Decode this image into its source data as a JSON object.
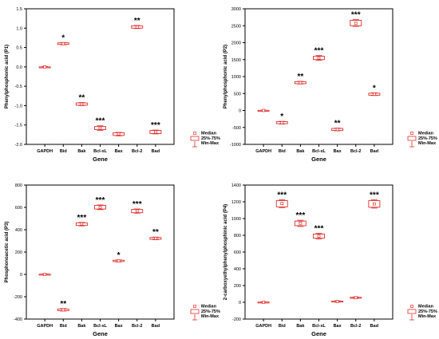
{
  "colors": {
    "box": "#e0302c",
    "axis": "#000000"
  },
  "chart_data": [
    {
      "type": "box",
      "ylabel": "Phenylphosphonic acid (P1)",
      "xlabel": "Gene",
      "categories": [
        "GAPDH",
        "Bid",
        "Bak",
        "Bcl-xL",
        "Bax",
        "Bcl-2",
        "Bad"
      ],
      "ylim": [
        -2.0,
        1.5
      ],
      "yticks": [
        1.5,
        1.0,
        0.5,
        0.0,
        -0.5,
        -1.0,
        -1.5,
        -2.0
      ],
      "ytick_labels": [
        "1.5",
        "1.0",
        "0.5",
        "0.0",
        "-0.5",
        "-1.0",
        "-1.5",
        "-2.0"
      ],
      "boxes": [
        {
          "median": 0.0,
          "q1": 0.0,
          "q3": 0.0,
          "min": -0.01,
          "max": 0.01,
          "sig": ""
        },
        {
          "median": 0.6,
          "q1": 0.58,
          "q3": 0.62,
          "min": 0.57,
          "max": 0.63,
          "sig": "*"
        },
        {
          "median": -0.96,
          "q1": -0.99,
          "q3": -0.93,
          "min": -1.0,
          "max": -0.92,
          "sig": "**"
        },
        {
          "median": -1.58,
          "q1": -1.62,
          "q3": -1.54,
          "min": -1.64,
          "max": -1.52,
          "sig": "***"
        },
        {
          "median": -1.73,
          "q1": -1.77,
          "q3": -1.7,
          "min": -1.78,
          "max": -1.69,
          "sig": ""
        },
        {
          "median": 1.03,
          "q1": 1.0,
          "q3": 1.06,
          "min": 0.99,
          "max": 1.07,
          "sig": "**"
        },
        {
          "median": -1.68,
          "q1": -1.72,
          "q3": -1.64,
          "min": -1.73,
          "max": -1.63,
          "sig": "***"
        }
      ],
      "legend": [
        "Median",
        "25%-75%",
        "Min-Max"
      ]
    },
    {
      "type": "box",
      "ylabel": "Phenylphosphonic acid (P2)",
      "xlabel": "Gene",
      "categories": [
        "GAPDH",
        "Bid",
        "Bak",
        "Bcl-xL",
        "Bax",
        "Bcl-2",
        "Bad"
      ],
      "ylim": [
        -1000,
        3000
      ],
      "yticks": [
        3000,
        2500,
        2000,
        1500,
        1000,
        500,
        0,
        -500,
        -1000
      ],
      "ytick_labels": [
        "3000",
        "2500",
        "2000",
        "1500",
        "1000",
        "500",
        "0",
        "-500",
        "-1000"
      ],
      "boxes": [
        {
          "median": 0,
          "q1": -5,
          "q3": 5,
          "min": -10,
          "max": 10,
          "sig": ""
        },
        {
          "median": -360,
          "q1": -390,
          "q3": -330,
          "min": -400,
          "max": -320,
          "sig": "*"
        },
        {
          "median": 820,
          "q1": 790,
          "q3": 850,
          "min": 780,
          "max": 860,
          "sig": "**"
        },
        {
          "median": 1550,
          "q1": 1500,
          "q3": 1600,
          "min": 1480,
          "max": 1620,
          "sig": "***"
        },
        {
          "median": -560,
          "q1": -590,
          "q3": -530,
          "min": -600,
          "max": -520,
          "sig": "**"
        },
        {
          "median": 2570,
          "q1": 2500,
          "q3": 2660,
          "min": 2480,
          "max": 2680,
          "sig": "***"
        },
        {
          "median": 480,
          "q1": 450,
          "q3": 510,
          "min": 440,
          "max": 520,
          "sig": "*"
        }
      ],
      "legend": [
        "Median",
        "25%-75%",
        "Min-Max"
      ]
    },
    {
      "type": "box",
      "ylabel": "Phosphonoacetic acid (P3)",
      "xlabel": "Gene",
      "categories": [
        "GAPDH",
        "Bid",
        "Bak",
        "Bcl-xL",
        "Bax",
        "Bcl-2",
        "Bad"
      ],
      "ylim": [
        -400,
        800
      ],
      "yticks": [
        800,
        600,
        400,
        200,
        0,
        -200,
        -400
      ],
      "ytick_labels": [
        "800",
        "600",
        "400",
        "200",
        "0",
        "-200",
        "-400"
      ],
      "boxes": [
        {
          "median": 0,
          "q1": -2,
          "q3": 2,
          "min": -4,
          "max": 4,
          "sig": ""
        },
        {
          "median": -318,
          "q1": -325,
          "q3": -310,
          "min": -328,
          "max": -306,
          "sig": "**"
        },
        {
          "median": 452,
          "q1": 438,
          "q3": 462,
          "min": 434,
          "max": 466,
          "sig": "***"
        },
        {
          "median": 602,
          "q1": 585,
          "q3": 618,
          "min": 580,
          "max": 622,
          "sig": "***"
        },
        {
          "median": 120,
          "q1": 115,
          "q3": 127,
          "min": 112,
          "max": 130,
          "sig": "*"
        },
        {
          "median": 568,
          "q1": 552,
          "q3": 582,
          "min": 548,
          "max": 586,
          "sig": "***"
        },
        {
          "median": 322,
          "q1": 314,
          "q3": 330,
          "min": 310,
          "max": 334,
          "sig": "**"
        }
      ],
      "legend": [
        "Median",
        "25%-75%",
        "Min-Max"
      ]
    },
    {
      "type": "box",
      "ylabel": "2-carboxyethylphenylphosphinic acid (P4)",
      "xlabel": "Gene",
      "categories": [
        "GAPDH",
        "Bid",
        "Bak",
        "Bcl-xL",
        "Bax",
        "Bcl-2",
        "Bad"
      ],
      "ylim": [
        -200,
        1400
      ],
      "yticks": [
        1400,
        1200,
        1000,
        800,
        600,
        400,
        200,
        0,
        -200
      ],
      "ytick_labels": [
        "1400",
        "1200",
        "1000",
        "800",
        "600",
        "400",
        "200",
        "0",
        "-200"
      ],
      "boxes": [
        {
          "median": 0,
          "q1": -3,
          "q3": 3,
          "min": -6,
          "max": 6,
          "sig": ""
        },
        {
          "median": 1180,
          "q1": 1140,
          "q3": 1215,
          "min": 1130,
          "max": 1225,
          "sig": "***"
        },
        {
          "median": 945,
          "q1": 915,
          "q3": 970,
          "min": 905,
          "max": 980,
          "sig": "***"
        },
        {
          "median": 790,
          "q1": 765,
          "q3": 815,
          "min": 755,
          "max": 825,
          "sig": "***"
        },
        {
          "median": 10,
          "q1": 5,
          "q3": 15,
          "min": 2,
          "max": 18,
          "sig": ""
        },
        {
          "median": 55,
          "q1": 50,
          "q3": 60,
          "min": 46,
          "max": 64,
          "sig": ""
        },
        {
          "median": 1175,
          "q1": 1135,
          "q3": 1215,
          "min": 1125,
          "max": 1225,
          "sig": "***"
        }
      ],
      "legend": [
        "Median",
        "25%-75%",
        "Min-Max"
      ]
    }
  ]
}
